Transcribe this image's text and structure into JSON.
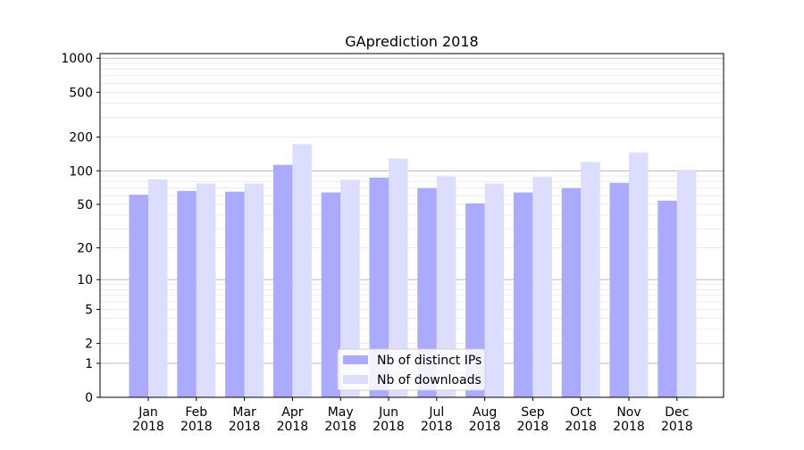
{
  "chart_data": {
    "type": "bar",
    "title": "GAprediction 2018",
    "xlabel": "",
    "ylabel": "",
    "y_scale": "log(1 + y)",
    "ylim": [
      0,
      1100
    ],
    "y_ticks": [
      0,
      1,
      2,
      5,
      10,
      20,
      50,
      100,
      200,
      500,
      1000
    ],
    "y_tick_labels": [
      "0",
      "1",
      "2",
      "5",
      "10",
      "20",
      "50",
      "100",
      "200",
      "500",
      "1000"
    ],
    "grid": true,
    "legend_position": "bottom-center",
    "categories": [
      {
        "month": "Jan",
        "year": "2018"
      },
      {
        "month": "Feb",
        "year": "2018"
      },
      {
        "month": "Mar",
        "year": "2018"
      },
      {
        "month": "Apr",
        "year": "2018"
      },
      {
        "month": "May",
        "year": "2018"
      },
      {
        "month": "Jun",
        "year": "2018"
      },
      {
        "month": "Jul",
        "year": "2018"
      },
      {
        "month": "Aug",
        "year": "2018"
      },
      {
        "month": "Sep",
        "year": "2018"
      },
      {
        "month": "Oct",
        "year": "2018"
      },
      {
        "month": "Nov",
        "year": "2018"
      },
      {
        "month": "Dec",
        "year": "2018"
      }
    ],
    "series": [
      {
        "name": "Nb of distinct IPs",
        "color": "#aaaaff",
        "values": [
          61,
          66,
          65,
          113,
          64,
          87,
          70,
          51,
          64,
          70,
          78,
          54
        ]
      },
      {
        "name": "Nb of downloads",
        "color": "#ddddff",
        "values": [
          84,
          77,
          77,
          173,
          83,
          129,
          89,
          77,
          88,
          120,
          146,
          102
        ]
      }
    ]
  }
}
